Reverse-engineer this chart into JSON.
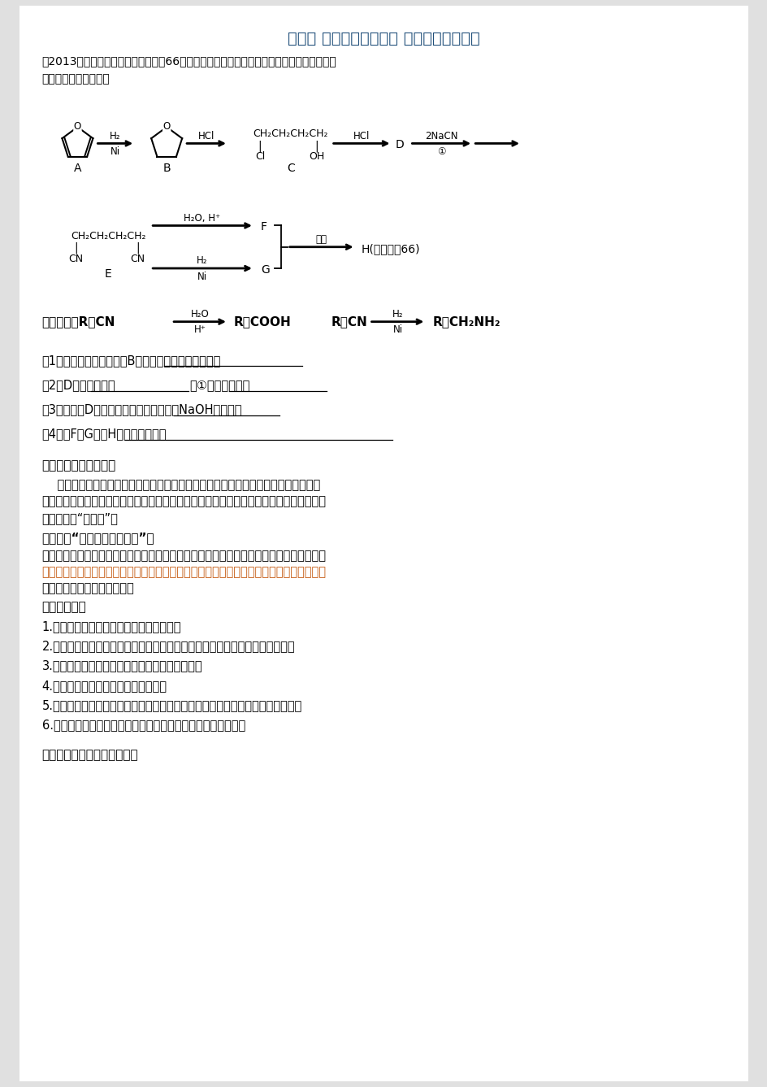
{
  "title": "第三章 有机合成及其应用 合成高分子化合物",
  "title_color": "#1F4E79",
  "bg_color": "#E0E0E0",
  "page_bg": "#FFFFFF",
  "intro_line1": "（2013年山东高考有机题）聚酰胺－66常用于生产帐篷、渔网、降落伞及弹力丝袜等织物，",
  "intro_line2": "可利用下列路线合成：",
  "q1": "（1）能与银氨溶液反应的B的同分异构体的结构简式为",
  "q2a": "（2）D的结构简式为",
  "q2b": "，①的反应类型为",
  "q3": "（3）为检验D中的官能团，所用试剂包括NaOH水溶液及",
  "q4": "（4）由F和G生成H的反应方程式为",
  "sec1_title": "【本章教材整体说明】",
  "sec1_p1": "    有机合成是有机化学最令人瞩目的领域，在工业、农业和科学研究等方面，都有广泛",
  "sec1_p2": "的应用。目前人类已知的有机化合物大多数是通过合成得到的。在一个旧的自然界旁边建立",
  "sec1_p3": "了一个新的“自然界”。",
  "sec2_title": "【第１节“有机化合物的合成”】",
  "sec2_p1": "不仅可以让学生学习合成的路线设计的方法，体会有机合成对人类的影响，还可以起到全面",
  "sec2_p2": "整合有机化合物、官能团、结构、反应、性质、转化和合成之间的关系，更深刻地体会有机",
  "sec2_p3": "化学的内在联系和创造价值。",
  "sec2_p2_color": "#C55A11",
  "sec3_title": "【学习目标】",
  "sec3_items": [
    "1.初步了解有机合成路线设计的基本思路；",
    "2.知道有机合成设计的一般程序，能对给出的合成路线进行简单的分析和评价；",
    "3.能够运用逆推法设计简单有机分子的合成路线；",
    "4.了解使碳链增长、缩短的反应类型；",
    "5.综合各类有机间的相互转化关系，知道在碳链上引入特定的官能团的反应途径；",
    "6.认识卤代烃的组成和结构特点，掌握卤代烃的重要化学性质。"
  ],
  "sec4_title": "【教学重点】有机合成的关键"
}
